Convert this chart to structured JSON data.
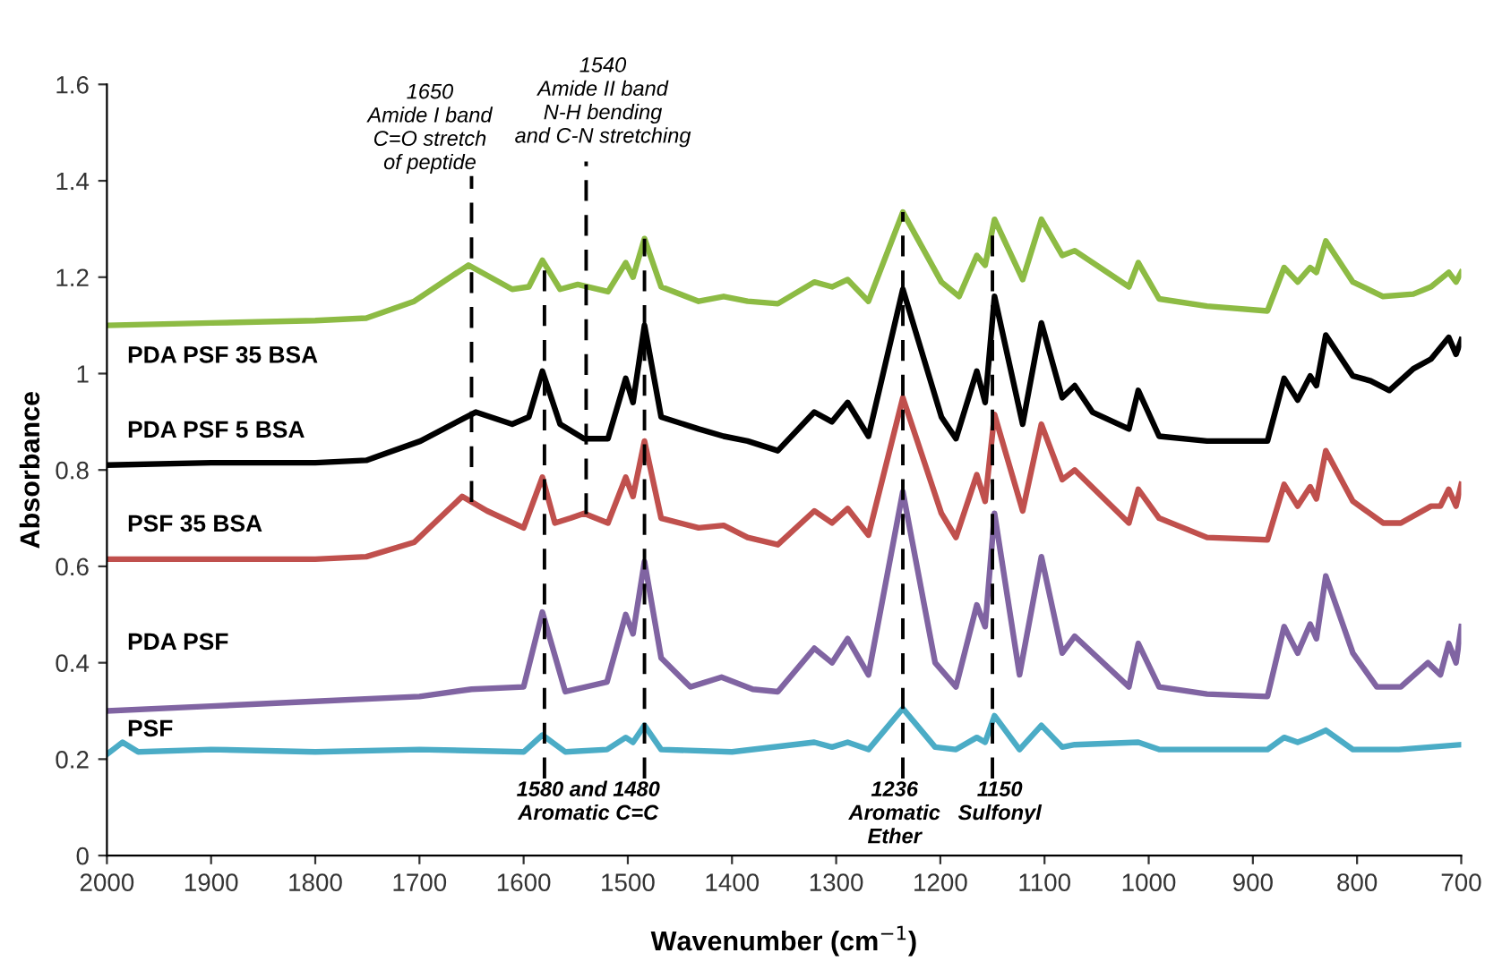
{
  "chart_data": {
    "type": "line",
    "xlabel": "Wavenumber (cm$^{−1}$)",
    "ylabel": "Absorbance",
    "xlim": [
      2000,
      700
    ],
    "xticks": [
      2000,
      1900,
      1800,
      1700,
      1600,
      1500,
      1400,
      1300,
      1200,
      1100,
      1000,
      900,
      800,
      700
    ],
    "ylim": [
      0,
      1.6
    ],
    "yticks": [
      0,
      0.2,
      0.4,
      0.6,
      0.8,
      1,
      1.2,
      1.4,
      1.6
    ],
    "grid": false,
    "legend": false,
    "marker": "none",
    "line_style": "solid",
    "series": [
      {
        "name": "PDA PSF 35 BSA",
        "color": "#8dbb44",
        "x": [
          2000,
          1900,
          1800,
          1751,
          1705,
          1653,
          1611,
          1595,
          1582,
          1565,
          1548,
          1519,
          1502,
          1495,
          1484,
          1468,
          1432,
          1408,
          1385,
          1356,
          1321,
          1304,
          1289,
          1269,
          1236,
          1199,
          1182,
          1165,
          1157,
          1148,
          1121,
          1103,
          1083,
          1071,
          1019,
          1010,
          990,
          944,
          886,
          870,
          857,
          845,
          839,
          830,
          804,
          775,
          746,
          729,
          712,
          705,
          700
        ],
        "values": [
          1.1,
          1.105,
          1.11,
          1.115,
          1.15,
          1.225,
          1.175,
          1.18,
          1.235,
          1.175,
          1.185,
          1.17,
          1.23,
          1.2,
          1.28,
          1.18,
          1.15,
          1.16,
          1.15,
          1.145,
          1.19,
          1.18,
          1.195,
          1.15,
          1.335,
          1.19,
          1.16,
          1.245,
          1.225,
          1.32,
          1.195,
          1.32,
          1.245,
          1.255,
          1.18,
          1.23,
          1.155,
          1.14,
          1.13,
          1.22,
          1.19,
          1.22,
          1.21,
          1.275,
          1.19,
          1.16,
          1.165,
          1.18,
          1.21,
          1.19,
          1.21
        ]
      },
      {
        "name": "PDA PSF 5 BSA",
        "color": "#000000",
        "x": [
          2000,
          1900,
          1800,
          1751,
          1699,
          1646,
          1611,
          1595,
          1582,
          1565,
          1542,
          1519,
          1502,
          1495,
          1484,
          1468,
          1432,
          1408,
          1385,
          1356,
          1321,
          1304,
          1289,
          1269,
          1236,
          1199,
          1185,
          1165,
          1157,
          1148,
          1121,
          1103,
          1083,
          1071,
          1054,
          1019,
          1010,
          990,
          944,
          886,
          870,
          857,
          845,
          839,
          830,
          804,
          787,
          769,
          746,
          729,
          712,
          705,
          700
        ],
        "values": [
          0.81,
          0.815,
          0.815,
          0.82,
          0.86,
          0.92,
          0.895,
          0.91,
          1.005,
          0.895,
          0.865,
          0.865,
          0.99,
          0.94,
          1.1,
          0.91,
          0.885,
          0.87,
          0.86,
          0.84,
          0.92,
          0.9,
          0.94,
          0.87,
          1.175,
          0.91,
          0.865,
          1.005,
          0.94,
          1.16,
          0.895,
          1.105,
          0.95,
          0.975,
          0.92,
          0.885,
          0.965,
          0.87,
          0.86,
          0.86,
          0.99,
          0.945,
          0.995,
          0.975,
          1.08,
          0.995,
          0.985,
          0.965,
          1.01,
          1.03,
          1.075,
          1.04,
          1.07
        ]
      },
      {
        "name": "PSF 35 BSA",
        "color": "#c0504d",
        "x": [
          2000,
          1900,
          1800,
          1751,
          1705,
          1659,
          1635,
          1600,
          1582,
          1570,
          1555,
          1542,
          1519,
          1502,
          1495,
          1484,
          1468,
          1432,
          1408,
          1385,
          1356,
          1321,
          1304,
          1289,
          1269,
          1236,
          1199,
          1185,
          1165,
          1157,
          1148,
          1121,
          1103,
          1083,
          1071,
          1019,
          1010,
          990,
          944,
          886,
          870,
          857,
          845,
          839,
          830,
          804,
          775,
          758,
          729,
          720,
          712,
          705,
          700
        ],
        "values": [
          0.615,
          0.615,
          0.615,
          0.62,
          0.65,
          0.745,
          0.715,
          0.68,
          0.785,
          0.69,
          0.7,
          0.71,
          0.69,
          0.785,
          0.745,
          0.86,
          0.7,
          0.68,
          0.685,
          0.66,
          0.645,
          0.715,
          0.69,
          0.72,
          0.665,
          0.95,
          0.71,
          0.66,
          0.79,
          0.735,
          0.915,
          0.715,
          0.895,
          0.78,
          0.8,
          0.69,
          0.76,
          0.7,
          0.66,
          0.655,
          0.77,
          0.725,
          0.765,
          0.74,
          0.84,
          0.735,
          0.69,
          0.69,
          0.725,
          0.725,
          0.76,
          0.725,
          0.77
        ]
      },
      {
        "name": "PDA PSF",
        "color": "#8064a2",
        "x": [
          2000,
          1900,
          1800,
          1700,
          1650,
          1600,
          1582,
          1560,
          1520,
          1502,
          1495,
          1484,
          1468,
          1440,
          1410,
          1380,
          1356,
          1321,
          1304,
          1289,
          1269,
          1236,
          1205,
          1185,
          1165,
          1157,
          1148,
          1124,
          1103,
          1083,
          1071,
          1019,
          1010,
          990,
          944,
          886,
          870,
          857,
          845,
          839,
          830,
          804,
          781,
          758,
          732,
          720,
          712,
          705,
          700
        ],
        "values": [
          0.3,
          0.31,
          0.32,
          0.33,
          0.345,
          0.35,
          0.505,
          0.34,
          0.36,
          0.5,
          0.46,
          0.61,
          0.41,
          0.35,
          0.37,
          0.345,
          0.34,
          0.43,
          0.4,
          0.45,
          0.375,
          0.755,
          0.4,
          0.35,
          0.52,
          0.475,
          0.71,
          0.375,
          0.62,
          0.42,
          0.455,
          0.35,
          0.44,
          0.35,
          0.335,
          0.33,
          0.475,
          0.42,
          0.48,
          0.45,
          0.58,
          0.42,
          0.35,
          0.35,
          0.4,
          0.375,
          0.44,
          0.4,
          0.475
        ]
      },
      {
        "name": "PSF",
        "color": "#4bacc6",
        "x": [
          2000,
          1985,
          1970,
          1900,
          1800,
          1700,
          1600,
          1582,
          1560,
          1520,
          1502,
          1495,
          1484,
          1468,
          1400,
          1321,
          1304,
          1289,
          1269,
          1236,
          1205,
          1185,
          1165,
          1157,
          1148,
          1124,
          1103,
          1083,
          1071,
          1010,
          990,
          886,
          870,
          857,
          845,
          830,
          804,
          760,
          700
        ],
        "values": [
          0.21,
          0.235,
          0.215,
          0.22,
          0.215,
          0.22,
          0.215,
          0.25,
          0.215,
          0.22,
          0.245,
          0.235,
          0.27,
          0.22,
          0.215,
          0.235,
          0.225,
          0.235,
          0.22,
          0.305,
          0.225,
          0.22,
          0.245,
          0.235,
          0.29,
          0.22,
          0.27,
          0.225,
          0.23,
          0.235,
          0.22,
          0.22,
          0.245,
          0.235,
          0.245,
          0.26,
          0.22,
          0.22,
          0.23
        ]
      }
    ],
    "ref_lines": [
      {
        "axis": "x",
        "value": 1650,
        "label": "1650\nAmide I band\nC=O stretch\nof peptide",
        "line_style": "dashed",
        "color": "#000000"
      },
      {
        "axis": "x",
        "value": 1540,
        "label": "1540\nAmide II band\nN-H bending\nand C-N stretching",
        "line_style": "dashed",
        "color": "#000000"
      },
      {
        "axis": "x",
        "value": 1580,
        "label": "1580 and 1480\nAromatic C=C",
        "line_style": "dashed",
        "color": "#000000"
      },
      {
        "axis": "x",
        "value": 1484,
        "label": null,
        "line_style": "dashed",
        "color": "#000000"
      },
      {
        "axis": "x",
        "value": 1236,
        "label": "1236\nAromatic\nEther",
        "line_style": "dashed",
        "color": "#000000"
      },
      {
        "axis": "x",
        "value": 1150,
        "label": "1150\nSulfonyl",
        "line_style": "dashed",
        "color": "#000000"
      }
    ]
  }
}
